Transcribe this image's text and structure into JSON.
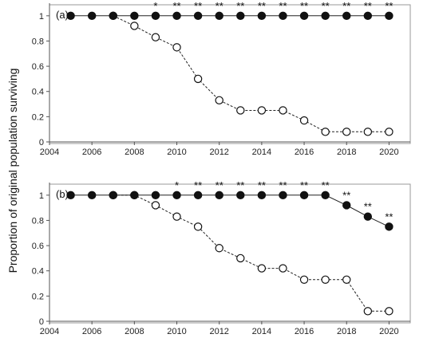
{
  "chart_data": {
    "type": "line",
    "ylabel": "Proportion of original population surviving",
    "panels": [
      {
        "label": "(a)",
        "xlim": [
          2004,
          2021
        ],
        "ylim": [
          0,
          1.1
        ],
        "xticks": [
          2004,
          2006,
          2008,
          2010,
          2012,
          2014,
          2016,
          2018,
          2020
        ],
        "yticks": [
          0,
          0.2,
          0.4,
          0.6,
          0.8,
          1
        ],
        "x": [
          2005,
          2006,
          2007,
          2008,
          2009,
          2010,
          2011,
          2012,
          2013,
          2014,
          2015,
          2016,
          2017,
          2018,
          2019,
          2020
        ],
        "series": [
          {
            "marker": "filled",
            "line": "solid",
            "values": [
              1,
              1,
              1,
              1,
              1,
              1,
              1,
              1,
              1,
              1,
              1,
              1,
              1,
              1,
              1,
              1
            ]
          },
          {
            "marker": "open",
            "line": "dashed",
            "values": [
              null,
              null,
              1,
              0.92,
              0.83,
              0.75,
              0.5,
              0.33,
              0.25,
              0.25,
              0.25,
              0.17,
              0.08,
              0.08,
              0.08,
              0.08
            ]
          }
        ],
        "significance": [
          {
            "x": 2009,
            "text": "*"
          },
          {
            "x": 2010,
            "text": "**"
          },
          {
            "x": 2011,
            "text": "**"
          },
          {
            "x": 2012,
            "text": "**"
          },
          {
            "x": 2013,
            "text": "**"
          },
          {
            "x": 2014,
            "text": "**"
          },
          {
            "x": 2015,
            "text": "**"
          },
          {
            "x": 2016,
            "text": "**"
          },
          {
            "x": 2017,
            "text": "**"
          },
          {
            "x": 2018,
            "text": "**"
          },
          {
            "x": 2019,
            "text": "**"
          },
          {
            "x": 2020,
            "text": "**"
          }
        ]
      },
      {
        "label": "(b)",
        "xlim": [
          2004,
          2021
        ],
        "ylim": [
          0,
          1.1
        ],
        "xticks": [
          2004,
          2006,
          2008,
          2010,
          2012,
          2014,
          2016,
          2018,
          2020
        ],
        "yticks": [
          0,
          0.2,
          0.4,
          0.6,
          0.8,
          1
        ],
        "x": [
          2005,
          2006,
          2007,
          2008,
          2009,
          2010,
          2011,
          2012,
          2013,
          2014,
          2015,
          2016,
          2017,
          2018,
          2019,
          2020
        ],
        "series": [
          {
            "marker": "filled",
            "line": "solid",
            "values": [
              1,
              1,
              1,
              1,
              1,
              1,
              1,
              1,
              1,
              1,
              1,
              1,
              1,
              0.92,
              0.83,
              0.75
            ]
          },
          {
            "marker": "open",
            "line": "dashed",
            "values": [
              null,
              null,
              1,
              1,
              0.92,
              0.83,
              0.75,
              0.58,
              0.5,
              0.42,
              0.42,
              0.33,
              0.33,
              0.33,
              0.08,
              0.08
            ]
          }
        ],
        "significance": [
          {
            "x": 2010,
            "text": "*"
          },
          {
            "x": 2011,
            "text": "**"
          },
          {
            "x": 2012,
            "text": "**"
          },
          {
            "x": 2013,
            "text": "**"
          },
          {
            "x": 2014,
            "text": "**"
          },
          {
            "x": 2015,
            "text": "**"
          },
          {
            "x": 2016,
            "text": "**"
          },
          {
            "x": 2017,
            "text": "**"
          },
          {
            "x": 2018,
            "text": "**"
          },
          {
            "x": 2019,
            "text": "**"
          },
          {
            "x": 2020,
            "text": "**"
          }
        ]
      }
    ]
  }
}
